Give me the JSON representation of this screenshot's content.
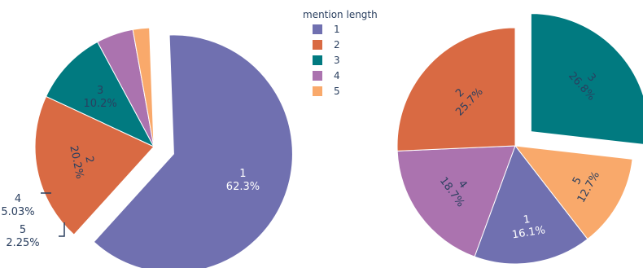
{
  "chart_data": [
    {
      "type": "pie",
      "slices": [
        {
          "label": "1",
          "percent_text": "62.3%",
          "value": 62.3,
          "color": "#7070b0",
          "pulled": true
        },
        {
          "label": "2",
          "percent_text": "20.2%",
          "value": 20.2,
          "color": "#d96a43",
          "pulled": false
        },
        {
          "label": "3",
          "percent_text": "10.2%",
          "value": 10.2,
          "color": "#017a80",
          "pulled": false
        },
        {
          "label": "4",
          "percent_text": "5.03%",
          "value": 5.03,
          "color": "#ab73af",
          "pulled": false
        },
        {
          "label": "5",
          "percent_text": "2.25%",
          "value": 2.25,
          "color": "#f9a96b",
          "pulled": false
        }
      ]
    },
    {
      "type": "pie",
      "slices": [
        {
          "label": "3",
          "percent_text": "26.8%",
          "value": 26.8,
          "color": "#017a80",
          "pulled": true
        },
        {
          "label": "5",
          "percent_text": "12.7%",
          "value": 12.7,
          "color": "#f9a96b",
          "pulled": false
        },
        {
          "label": "1",
          "percent_text": "16.1%",
          "value": 16.1,
          "color": "#7070b0",
          "pulled": false
        },
        {
          "label": "4",
          "percent_text": "18.7%",
          "value": 18.7,
          "color": "#ab73af",
          "pulled": false
        },
        {
          "label": "2",
          "percent_text": "25.7%",
          "value": 25.7,
          "color": "#d96a43",
          "pulled": false
        }
      ]
    }
  ],
  "legend": {
    "title": "mention length",
    "placement": "top-center",
    "items": [
      {
        "label": "1",
        "color": "#7070b0"
      },
      {
        "label": "2",
        "color": "#d96a43"
      },
      {
        "label": "3",
        "color": "#017a80"
      },
      {
        "label": "4",
        "color": "#ab73af"
      },
      {
        "label": "5",
        "color": "#f9a96b"
      }
    ]
  }
}
